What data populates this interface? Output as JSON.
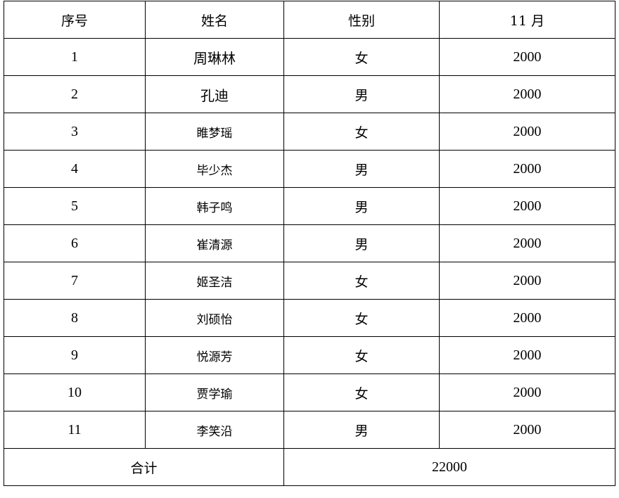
{
  "table": {
    "headers": [
      "序号",
      "姓名",
      "性别",
      "11 月"
    ],
    "rows": [
      {
        "no": "1",
        "name": "周琳林",
        "gender": "女",
        "amount": "2000"
      },
      {
        "no": "2",
        "name": "孔迪",
        "gender": "男",
        "amount": "2000"
      },
      {
        "no": "3",
        "name": "睢梦瑶",
        "gender": "女",
        "amount": "2000"
      },
      {
        "no": "4",
        "name": "毕少杰",
        "gender": "男",
        "amount": "2000"
      },
      {
        "no": "5",
        "name": "韩子鸣",
        "gender": "男",
        "amount": "2000"
      },
      {
        "no": "6",
        "name": "崔清源",
        "gender": "男",
        "amount": "2000"
      },
      {
        "no": "7",
        "name": "姬圣洁",
        "gender": "女",
        "amount": "2000"
      },
      {
        "no": "8",
        "name": "刘硕怡",
        "gender": "女",
        "amount": "2000"
      },
      {
        "no": "9",
        "name": "悦源芳",
        "gender": "女",
        "amount": "2000"
      },
      {
        "no": "10",
        "name": "贾学瑜",
        "gender": "女",
        "amount": "2000"
      },
      {
        "no": "11",
        "name": "李笑沿",
        "gender": "男",
        "amount": "2000"
      }
    ],
    "total_label": "合计",
    "total_value": "22000"
  }
}
